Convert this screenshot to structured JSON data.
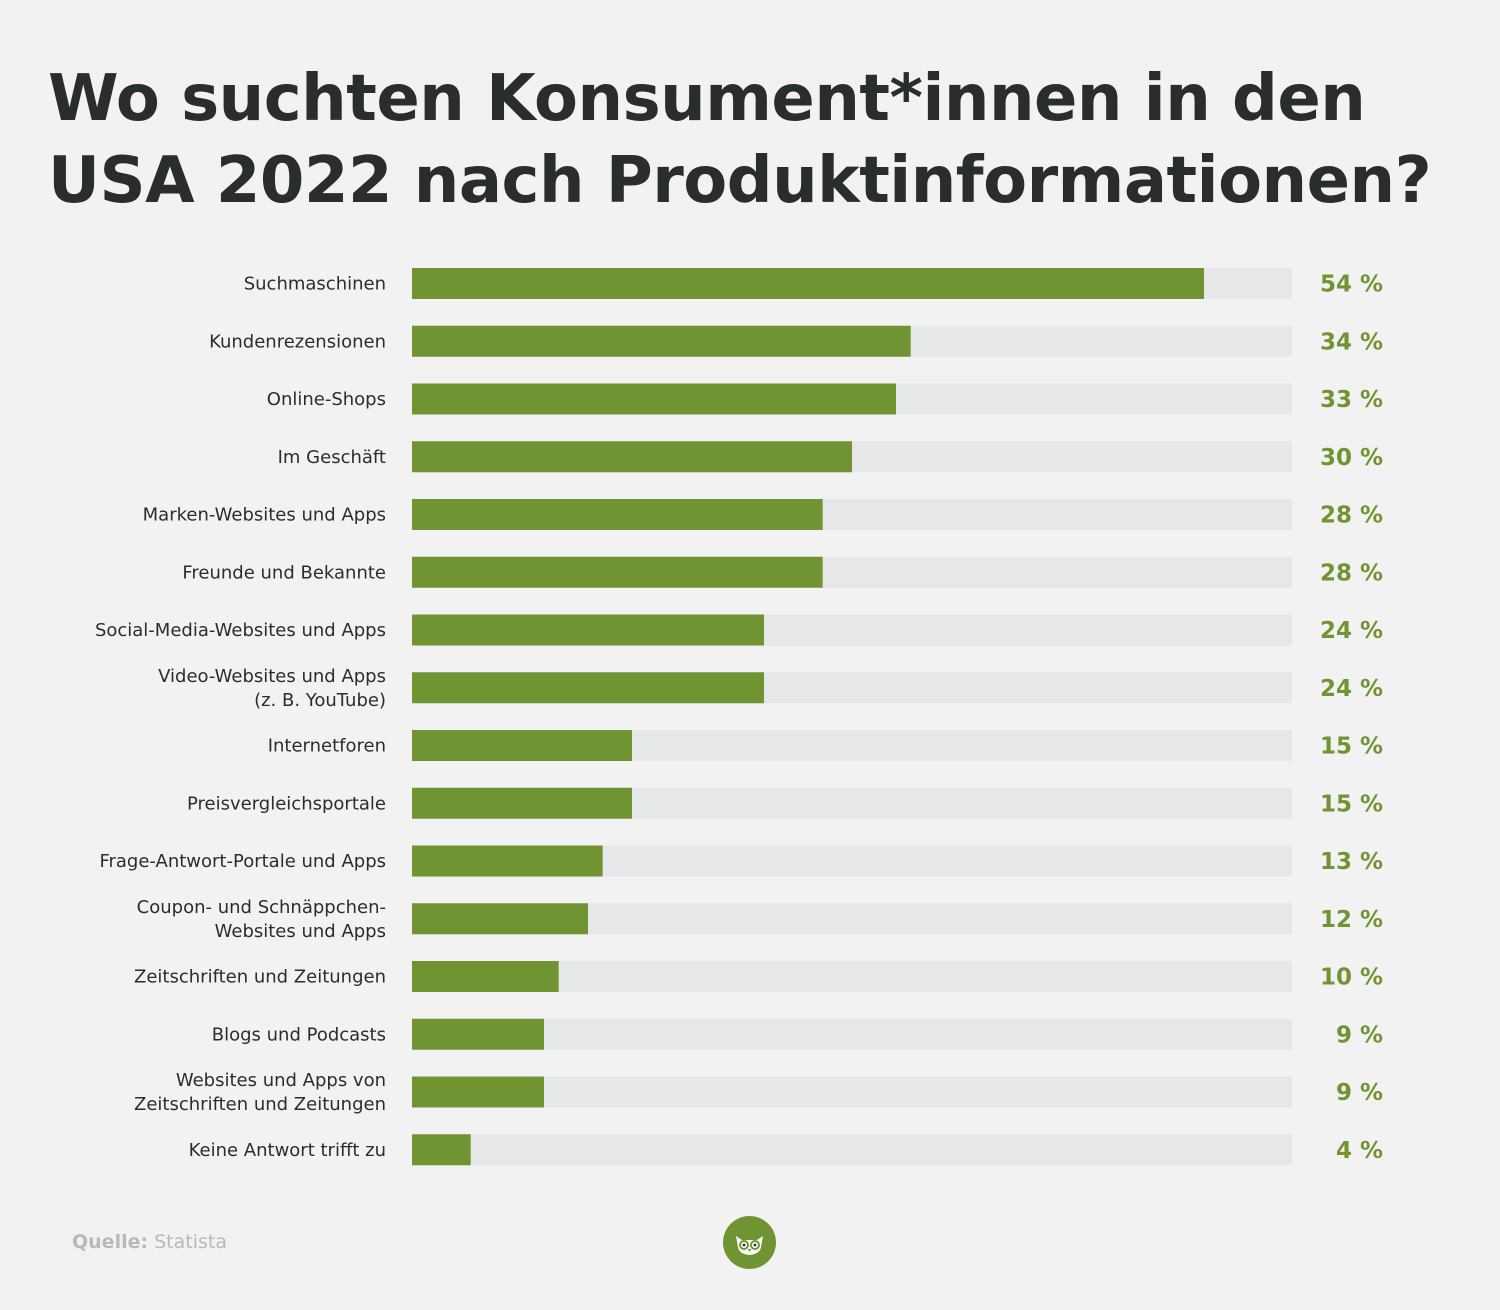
{
  "title": "Wo suchten Konsument*innen in den USA 2022 nach Produktinformationen?",
  "source_label": "Quelle:",
  "source_value": "Statista",
  "logo_icon": "owl-icon",
  "colors": {
    "bar": "#719432",
    "track": "#e6e7e8",
    "value_text": "#719432",
    "background": "#f2f2f2"
  },
  "chart_data": {
    "type": "bar",
    "orientation": "horizontal",
    "title": "Wo suchten Konsument*innen in den USA 2022 nach Produktinformationen?",
    "xlim": [
      0,
      60
    ],
    "grid": false,
    "categories": [
      [
        "Suchmaschinen"
      ],
      [
        "Kundenrezensionen"
      ],
      [
        "Online-Shops"
      ],
      [
        "Im Geschäft"
      ],
      [
        "Marken-Websites und Apps"
      ],
      [
        "Freunde und Bekannte"
      ],
      [
        "Social-Media-Websites und Apps"
      ],
      [
        "Video-Websites und Apps",
        "(z. B. YouTube)"
      ],
      [
        "Internetforen"
      ],
      [
        "Preisvergleichsportale"
      ],
      [
        "Frage-Antwort-Portale und Apps"
      ],
      [
        "Coupon- und Schnäppchen-",
        "Websites und Apps"
      ],
      [
        "Zeitschriften und Zeitungen"
      ],
      [
        "Blogs und Podcasts"
      ],
      [
        "Websites und Apps von",
        "Zeitschriften und Zeitungen"
      ],
      [
        "Keine Antwort trifft zu"
      ]
    ],
    "values": [
      54,
      34,
      33,
      30,
      28,
      28,
      24,
      24,
      15,
      15,
      13,
      12,
      10,
      9,
      9,
      4
    ],
    "value_labels": [
      "54 %",
      "34 %",
      "33 %",
      "30 %",
      "28 %",
      "28 %",
      "24 %",
      "24 %",
      "15 %",
      "15 %",
      "13 %",
      "12 %",
      "10 %",
      "9 %",
      "9 %",
      "4 %"
    ]
  }
}
